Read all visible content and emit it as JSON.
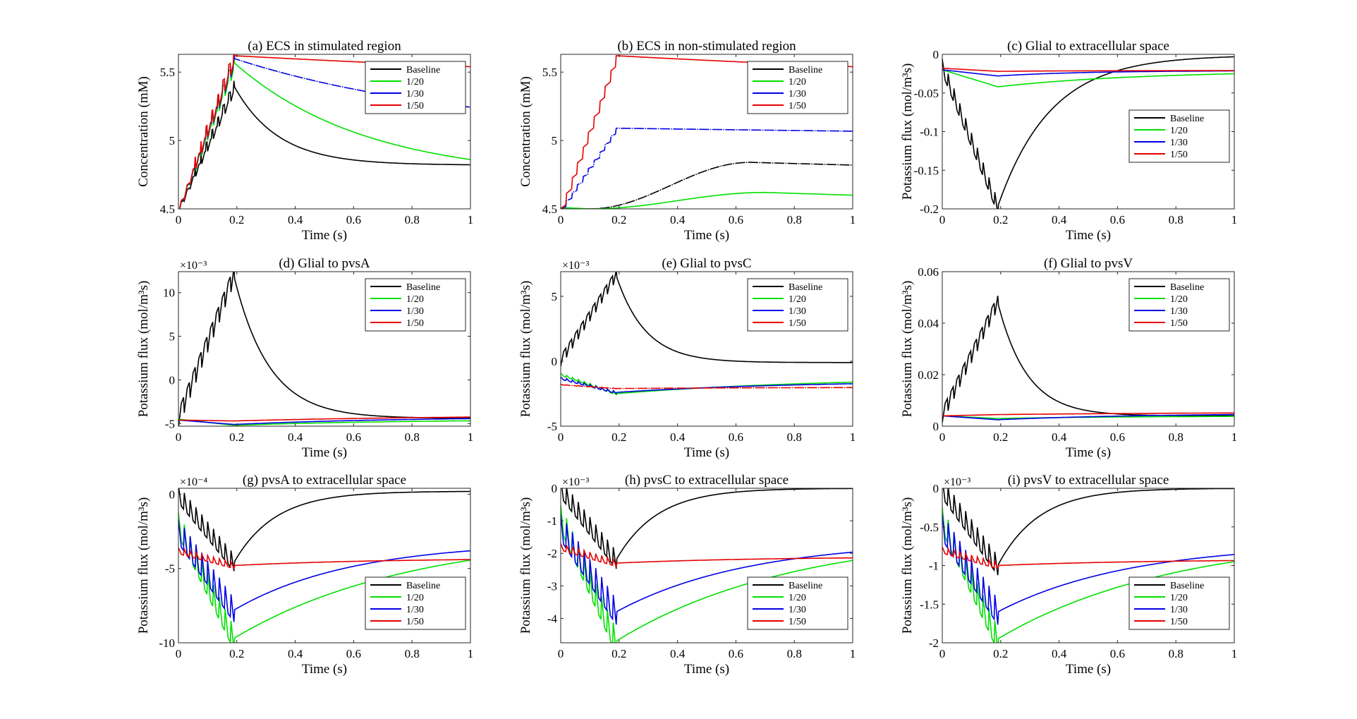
{
  "legend_entries": [
    "Baseline",
    "1/20",
    "1/30",
    "1/50"
  ],
  "series_colors": [
    "#000000",
    "#00e000",
    "#0000e6",
    "#e60000"
  ],
  "chart_data": [
    {
      "type": "line",
      "id": "a",
      "title": "(a) ECS in stimulated region",
      "xlabel": "Time (s)",
      "ylabel": "Concentration (mM)",
      "xlim": [
        0,
        1
      ],
      "ylim": [
        4.5,
        5.63
      ],
      "xticks": [
        0,
        0.2,
        0.4,
        0.6,
        0.8,
        1
      ],
      "xtick_labels": [
        "0",
        "0.2",
        "0.4",
        "0.6",
        "0.8",
        "1"
      ],
      "yticks": [
        4.5,
        5,
        5.5
      ],
      "ytick_labels": [
        "4.5",
        "5",
        "5.5"
      ],
      "exponent": "",
      "legend_position": "top-right",
      "series": [
        {
          "name": "Baseline",
          "kind": "stimrise",
          "start": 4.5,
          "peak": 5.4,
          "end": 4.82,
          "tau": 0.15,
          "zig": 0.08,
          "rise": "stairs",
          "style": "solid"
        },
        {
          "name": "1/20",
          "kind": "stimrise",
          "start": 4.5,
          "peak": 5.57,
          "end": 4.72,
          "tau": 0.45,
          "zig": 0.08,
          "rise": "stairs",
          "style": "solid"
        },
        {
          "name": "1/30",
          "kind": "stimrise",
          "start": 4.5,
          "peak": 5.6,
          "end": 5.04,
          "tau": 0.8,
          "zig": 0.08,
          "rise": "stairs",
          "style": "dashdot"
        },
        {
          "name": "1/50",
          "kind": "stimrise",
          "start": 4.5,
          "peak": 5.62,
          "end": 5.33,
          "tau": 2.5,
          "zig": 0.08,
          "rise": "stairs",
          "style": "solid"
        }
      ]
    },
    {
      "type": "line",
      "id": "b",
      "title": "(b) ECS in non-stimulated region",
      "xlabel": "Time (s)",
      "ylabel": "Concentration (mM)",
      "xlim": [
        0,
        1
      ],
      "ylim": [
        4.5,
        5.63
      ],
      "xticks": [
        0,
        0.2,
        0.4,
        0.6,
        0.8,
        1
      ],
      "xtick_labels": [
        "0",
        "0.2",
        "0.4",
        "0.6",
        "0.8",
        "1"
      ],
      "yticks": [
        4.5,
        5,
        5.5
      ],
      "ytick_labels": [
        "4.5",
        "5",
        "5.5"
      ],
      "exponent": "",
      "legend_position": "top-right",
      "series": [
        {
          "name": "Baseline",
          "kind": "slowhump",
          "start": 4.5,
          "peak": 4.84,
          "tpeak": 0.65,
          "end": 4.82,
          "style": "dashdot"
        },
        {
          "name": "1/20",
          "kind": "slowhump",
          "start": 4.51,
          "peak": 4.62,
          "tpeak": 0.7,
          "end": 4.6,
          "dip": 4.5,
          "style": "solid"
        },
        {
          "name": "1/30",
          "kind": "stimrise",
          "start": 4.5,
          "peak": 5.09,
          "end": 4.97,
          "tau": 4.0,
          "zig": 0.0,
          "rise": "stairs",
          "style": "dashdot"
        },
        {
          "name": "1/50",
          "kind": "stimrise",
          "start": 4.5,
          "peak": 5.62,
          "end": 5.33,
          "tau": 2.5,
          "zig": 0.0,
          "rise": "stairs",
          "style": "solid"
        }
      ]
    },
    {
      "type": "line",
      "id": "c",
      "title": "(c) Glial to extracellular space",
      "xlabel": "Time (s)",
      "ylabel": "Potassium flux (mol/m³s)",
      "xlim": [
        0,
        1
      ],
      "ylim": [
        -0.2,
        0
      ],
      "xticks": [
        0,
        0.2,
        0.4,
        0.6,
        0.8,
        1
      ],
      "xtick_labels": [
        "0",
        "0.2",
        "0.4",
        "0.6",
        "0.8",
        "1"
      ],
      "yticks": [
        -0.2,
        -0.15,
        -0.1,
        -0.05,
        0
      ],
      "ytick_labels": [
        "-0.2",
        "-0.15",
        "-0.1",
        "-0.05",
        "0"
      ],
      "exponent": "",
      "legend_position": "middle-right",
      "series": [
        {
          "name": "Baseline",
          "kind": "stimrise",
          "start": -0.015,
          "peak": -0.197,
          "end": -0.001,
          "tau": 0.18,
          "zig": 0.1,
          "rise": "linear",
          "style": "solid"
        },
        {
          "name": "1/20",
          "kind": "stimrise",
          "start": -0.02,
          "peak": -0.042,
          "end": -0.021,
          "tau": 0.5,
          "zig": 0.0,
          "rise": "linear",
          "style": "solid"
        },
        {
          "name": "1/30",
          "kind": "stimrise",
          "start": -0.02,
          "peak": -0.028,
          "end": -0.021,
          "tau": 0.3,
          "zig": 0.0,
          "rise": "linear",
          "style": "solid"
        },
        {
          "name": "1/50",
          "kind": "stimrise",
          "start": -0.018,
          "peak": -0.022,
          "end": -0.021,
          "tau": 0.3,
          "zig": 0.0,
          "rise": "linear",
          "style": "solid"
        }
      ]
    },
    {
      "type": "line",
      "id": "d",
      "title": "(d) Glial to pvsA",
      "xlabel": "Time (s)",
      "ylabel": "Potassium flux (mol/m³s)",
      "xlim": [
        0,
        1
      ],
      "ylim": [
        -5.3,
        12.4
      ],
      "xticks": [
        0,
        0.2,
        0.4,
        0.6,
        0.8,
        1
      ],
      "xtick_labels": [
        "0",
        "0.2",
        "0.4",
        "0.6",
        "0.8",
        "1"
      ],
      "yticks": [
        -5,
        0,
        5,
        10
      ],
      "ytick_labels": [
        "-5",
        "0",
        "5",
        "10"
      ],
      "exponent": "×10⁻³",
      "legend_position": "top-right",
      "series": [
        {
          "name": "Baseline",
          "kind": "stimrise",
          "start": -4.5,
          "peak": 11.9,
          "end": -4.4,
          "tau": 0.12,
          "zig": 0.12,
          "rise": "linear",
          "style": "solid"
        },
        {
          "name": "1/20",
          "kind": "stimrise",
          "start": -4.5,
          "peak": -5.2,
          "end": -4.5,
          "tau": 0.6,
          "zig": 0.0,
          "rise": "linear",
          "style": "solid"
        },
        {
          "name": "1/30",
          "kind": "stimrise",
          "start": -4.6,
          "peak": -5.1,
          "end": -4.2,
          "tau": 0.6,
          "zig": 0.0,
          "rise": "linear",
          "style": "solid"
        },
        {
          "name": "1/50",
          "kind": "stimrise",
          "start": -4.6,
          "peak": -4.7,
          "end": -4.0,
          "tau": 0.8,
          "zig": 0.0,
          "rise": "linear",
          "style": "solid"
        }
      ]
    },
    {
      "type": "line",
      "id": "e",
      "title": "(e) Glial to pvsC",
      "xlabel": "Time (s)",
      "ylabel": "Potassium flux (mol/m³s)",
      "xlim": [
        0,
        1
      ],
      "ylim": [
        -5,
        6.9
      ],
      "xticks": [
        0,
        0.2,
        0.4,
        0.6,
        0.8,
        1
      ],
      "xtick_labels": [
        "0",
        "0.2",
        "0.4",
        "0.6",
        "0.8",
        "1"
      ],
      "yticks": [
        -5,
        0,
        5
      ],
      "ytick_labels": [
        "-5",
        "0",
        "5"
      ],
      "exponent": "×10⁻³",
      "legend_position": "top-right",
      "series": [
        {
          "name": "Baseline",
          "kind": "stimrise",
          "start": 0,
          "peak": 6.6,
          "end": -0.1,
          "tau": 0.1,
          "zig": 0.12,
          "rise": "linear",
          "style": "solid"
        },
        {
          "name": "1/20",
          "kind": "stimrise",
          "start": -1.0,
          "peak": -2.5,
          "end": -1.2,
          "tau": 0.7,
          "zig": 0.1,
          "rise": "linear",
          "style": "solid"
        },
        {
          "name": "1/30",
          "kind": "stimrise",
          "start": -1.3,
          "peak": -2.4,
          "end": -1.5,
          "tau": 0.6,
          "zig": 0.15,
          "rise": "linear",
          "style": "solid"
        },
        {
          "name": "1/50",
          "kind": "stimrise",
          "start": -1.8,
          "peak": -2.1,
          "end": -2.0,
          "tau": 0.6,
          "zig": 0.1,
          "rise": "linear",
          "style": "dashdot"
        }
      ]
    },
    {
      "type": "line",
      "id": "f",
      "title": "(f) Glial to pvsV",
      "xlabel": "Time (s)",
      "ylabel": "Potassium flux (mol/m³s)",
      "xlim": [
        0,
        1
      ],
      "ylim": [
        0,
        0.06
      ],
      "xticks": [
        0,
        0.2,
        0.4,
        0.6,
        0.8,
        1
      ],
      "xtick_labels": [
        "0",
        "0.2",
        "0.4",
        "0.6",
        "0.8",
        "1"
      ],
      "yticks": [
        0,
        0.02,
        0.04,
        0.06
      ],
      "ytick_labels": [
        "0",
        "0.02",
        "0.04",
        "0.06"
      ],
      "exponent": "",
      "legend_position": "top-right",
      "series": [
        {
          "name": "Baseline",
          "kind": "stimrise",
          "start": 0.004,
          "peak": 0.048,
          "end": 0.004,
          "tau": 0.1,
          "zig": 0.12,
          "rise": "linear",
          "style": "solid"
        },
        {
          "name": "1/20",
          "kind": "stimrise",
          "start": 0.004,
          "peak": 0.003,
          "end": 0.004,
          "tau": 0.5,
          "zig": 0.0,
          "rise": "linear",
          "style": "solid"
        },
        {
          "name": "1/30",
          "kind": "stimrise",
          "start": 0.004,
          "peak": 0.0025,
          "end": 0.005,
          "tau": 0.5,
          "zig": 0.0,
          "rise": "linear",
          "style": "solid"
        },
        {
          "name": "1/50",
          "kind": "stimrise",
          "start": 0.004,
          "peak": 0.0045,
          "end": 0.0055,
          "tau": 0.8,
          "zig": 0.0,
          "rise": "linear",
          "style": "solid"
        }
      ]
    },
    {
      "type": "line",
      "id": "g",
      "title": "(g) pvsA to extracellular space",
      "xlabel": "Time (s)",
      "ylabel": "Potassium flux (mol/m³s)",
      "xlim": [
        0,
        1
      ],
      "ylim": [
        -10,
        0.4
      ],
      "xticks": [
        0,
        0.2,
        0.4,
        0.6,
        0.8,
        1
      ],
      "xtick_labels": [
        "0",
        "0.2",
        "0.4",
        "0.6",
        "0.8",
        "1"
      ],
      "yticks": [
        -10,
        -5,
        0
      ],
      "ytick_labels": [
        "-10",
        "-5",
        "0"
      ],
      "exponent": "×10⁻⁴",
      "legend_position": "bottom-right",
      "series": [
        {
          "name": "Baseline",
          "kind": "stimrise",
          "start": 0,
          "peak": -4.6,
          "end": 0.2,
          "tau": 0.14,
          "zig": 0.25,
          "rise": "linear",
          "style": "solid"
        },
        {
          "name": "1/20",
          "kind": "stimrise",
          "start": -2.0,
          "peak": -9.7,
          "end": -2.6,
          "tau": 0.6,
          "zig": 0.2,
          "rise": "linear",
          "style": "solid"
        },
        {
          "name": "1/30",
          "kind": "stimrise",
          "start": -2.5,
          "peak": -7.8,
          "end": -3.2,
          "tau": 0.4,
          "zig": 0.3,
          "rise": "linear",
          "style": "solid"
        },
        {
          "name": "1/50",
          "kind": "stimrise",
          "start": -3.8,
          "peak": -4.8,
          "end": -4.3,
          "tau": 0.5,
          "zig": 0.4,
          "rise": "linear",
          "style": "solid"
        }
      ]
    },
    {
      "type": "line",
      "id": "h",
      "title": "(h) pvsC to extracellular space",
      "xlabel": "Time (s)",
      "ylabel": "Potassium flux (mol/m³s)",
      "xlim": [
        0,
        1
      ],
      "ylim": [
        -4.75,
        0
      ],
      "xticks": [
        0,
        0.2,
        0.4,
        0.6,
        0.8,
        1
      ],
      "xtick_labels": [
        "0",
        "0.2",
        "0.4",
        "0.6",
        "0.8",
        "1"
      ],
      "yticks": [
        -4,
        -3,
        -2,
        -1,
        0
      ],
      "ytick_labels": [
        "-4",
        "-3",
        "-2",
        "-1",
        "0"
      ],
      "exponent": "×10⁻³",
      "legend_position": "bottom-right",
      "series": [
        {
          "name": "Baseline",
          "kind": "stimrise",
          "start": 0,
          "peak": -2.2,
          "end": 0.0,
          "tau": 0.14,
          "zig": 0.25,
          "rise": "linear",
          "style": "solid"
        },
        {
          "name": "1/20",
          "kind": "stimrise",
          "start": -0.9,
          "peak": -4.7,
          "end": -1.35,
          "tau": 0.6,
          "zig": 0.2,
          "rise": "linear",
          "style": "solid"
        },
        {
          "name": "1/30",
          "kind": "stimrise",
          "start": -1.2,
          "peak": -3.8,
          "end": -1.6,
          "tau": 0.45,
          "zig": 0.3,
          "rise": "linear",
          "style": "solid"
        },
        {
          "name": "1/50",
          "kind": "stimrise",
          "start": -1.8,
          "peak": -2.3,
          "end": -2.1,
          "tau": 0.5,
          "zig": 0.4,
          "rise": "linear",
          "style": "solid"
        }
      ]
    },
    {
      "type": "line",
      "id": "i",
      "title": "(i) pvsV to extracellular space",
      "xlabel": "Time (s)",
      "ylabel": "Potassium flux (mol/m³s)",
      "xlim": [
        0,
        1
      ],
      "ylim": [
        -2,
        0
      ],
      "xticks": [
        0,
        0.2,
        0.4,
        0.6,
        0.8,
        1
      ],
      "xtick_labels": [
        "0",
        "0.2",
        "0.4",
        "0.6",
        "0.8",
        "1"
      ],
      "yticks": [
        -2,
        -1.5,
        -1,
        -0.5,
        0
      ],
      "ytick_labels": [
        "-2",
        "-1.5",
        "-1",
        "-0.5",
        "0"
      ],
      "exponent": "×10⁻³",
      "legend_position": "bottom-right",
      "series": [
        {
          "name": "Baseline",
          "kind": "stimrise",
          "start": 0,
          "peak": -1.0,
          "end": 0.0,
          "tau": 0.14,
          "zig": 0.25,
          "rise": "linear",
          "style": "solid"
        },
        {
          "name": "1/20",
          "kind": "stimrise",
          "start": -0.4,
          "peak": -1.95,
          "end": -0.6,
          "tau": 0.6,
          "zig": 0.2,
          "rise": "linear",
          "style": "solid"
        },
        {
          "name": "1/30",
          "kind": "stimrise",
          "start": -0.5,
          "peak": -1.6,
          "end": -0.71,
          "tau": 0.45,
          "zig": 0.3,
          "rise": "linear",
          "style": "solid"
        },
        {
          "name": "1/50",
          "kind": "stimrise",
          "start": -0.8,
          "peak": -1.0,
          "end": -0.92,
          "tau": 0.5,
          "zig": 0.4,
          "rise": "linear",
          "style": "solid"
        }
      ]
    }
  ]
}
